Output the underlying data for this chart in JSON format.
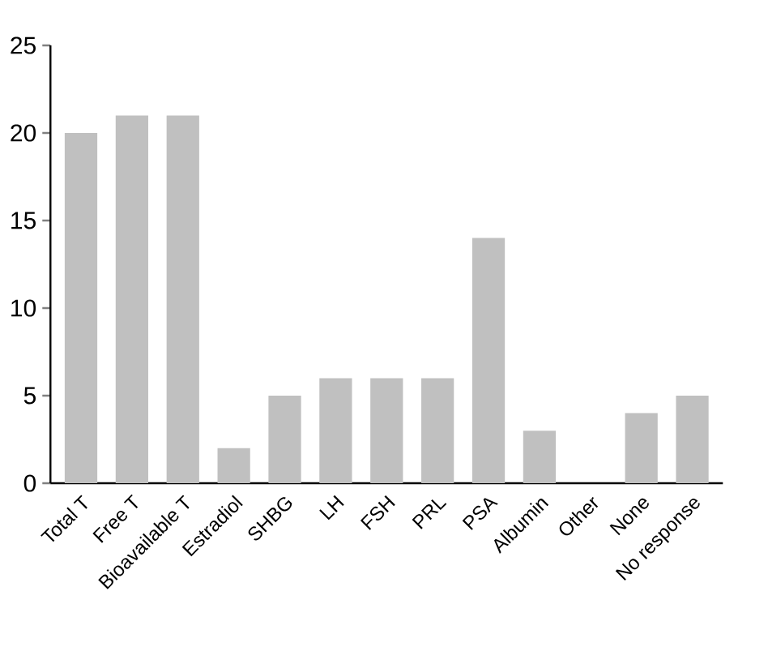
{
  "chart_data": {
    "type": "bar",
    "categories": [
      "Total T",
      "Free T",
      "Bioavailable T",
      "Estradiol",
      "SHBG",
      "LH",
      "FSH",
      "PRL",
      "PSA",
      "Albumin",
      "Other",
      "None",
      "No response"
    ],
    "values": [
      20,
      21,
      21,
      2,
      5,
      6,
      6,
      6,
      14,
      3,
      0,
      4,
      5
    ],
    "color": "#c0c0c0",
    "ylim": [
      0,
      25
    ],
    "yticks": [
      0,
      5,
      10,
      15,
      20,
      25
    ],
    "grid": false
  }
}
